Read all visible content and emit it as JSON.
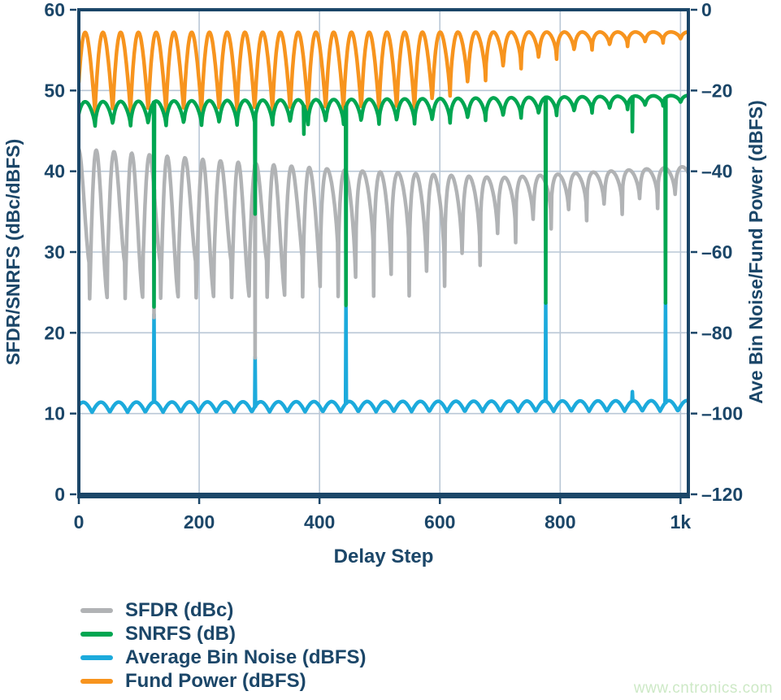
{
  "watermark": {
    "text": "www.cntronics.com",
    "color": "#cde9c6"
  },
  "chart_data": {
    "type": "line",
    "title": "",
    "xlabel": "Delay Step",
    "ylabel_left": "SFDR/SNRFS (dBc/dBFS)",
    "ylabel_right": "Ave Bin Noise/Fund Power (dBFS)",
    "grid": true,
    "legend_position": "bottom-left",
    "colors": {
      "axis": "#1b4668",
      "grid": "#b9c7d6",
      "background": "#ffffff"
    },
    "x_range": [
      0,
      1013
    ],
    "x_ticks": {
      "values": [
        0,
        200,
        400,
        600,
        800,
        1000
      ],
      "labels": [
        "0",
        "200",
        "400",
        "600",
        "800",
        "1k"
      ]
    },
    "y_left": {
      "min": 0,
      "max": 60,
      "ticks": [
        0,
        10,
        20,
        30,
        40,
        50,
        60
      ],
      "labels": [
        "0",
        "10",
        "20",
        "30",
        "40",
        "50",
        "60"
      ]
    },
    "y_right": {
      "min": -120,
      "max": 0,
      "ticks": [
        0,
        -20,
        -40,
        -60,
        -80,
        -100,
        -120
      ],
      "labels": [
        "0",
        "–20",
        "–40",
        "–60",
        "–80",
        "–100",
        "–120"
      ]
    },
    "waveform_note": "All series are quasi-periodic notch waveforms, period ~29.5 delay steps. value(x)=bottom+(top-bottom)*|sin(pi*u^skew)|^exp with u the phase fraction; envelopes are piecewise-linear breakpoints [x,value]; spikes are single-step glitches [x,value].",
    "series": [
      {
        "name": "SFDR (dBc)",
        "color": "#b1b3b5",
        "axis": "left",
        "z": 1,
        "period": 29.5,
        "phase": 18,
        "skew": 0.7,
        "top": [
          [
            0,
            42.8
          ],
          [
            250,
            41.2
          ],
          [
            450,
            40.1
          ],
          [
            700,
            39.2
          ],
          [
            1013,
            40.6
          ]
        ],
        "bottom": [
          [
            0,
            24.2
          ],
          [
            580,
            24.6
          ],
          [
            650,
            27.5
          ],
          [
            720,
            31.0
          ],
          [
            800,
            33.3
          ],
          [
            950,
            35.3
          ],
          [
            1013,
            35.8
          ]
        ],
        "exp": [
          [
            0,
            1.5
          ],
          [
            330,
            1.4
          ],
          [
            420,
            0.6
          ],
          [
            700,
            0.4
          ],
          [
            1013,
            0.35
          ]
        ],
        "alt": {
          "until": 560,
          "raise": 4.2
        },
        "spikes": [
          [
            125,
            21.9
          ],
          [
            293,
            16.9
          ]
        ]
      },
      {
        "name": "SNRFS (dB)",
        "color": "#00a651",
        "axis": "left",
        "z": 3,
        "period": 29.5,
        "phase": 27,
        "skew": 0.85,
        "top": [
          [
            0,
            48.6
          ],
          [
            600,
            49.0
          ],
          [
            1013,
            49.4
          ]
        ],
        "bottom": [
          [
            0,
            45.6
          ],
          [
            600,
            45.9
          ],
          [
            850,
            47.2
          ],
          [
            1013,
            48.4
          ]
        ],
        "exp": [
          [
            0,
            0.7
          ],
          [
            600,
            0.55
          ],
          [
            1013,
            0.45
          ]
        ],
        "spikes": [
          [
            125,
            23.2
          ],
          [
            293,
            34.7
          ],
          [
            374,
            44.6
          ],
          [
            444,
            23.4
          ],
          [
            776,
            23.7
          ],
          [
            920,
            44.9
          ],
          [
            975,
            23.7
          ]
        ]
      },
      {
        "name": "Average Bin Noise (dBFS)",
        "color": "#1caadc",
        "axis": "right",
        "z": 0,
        "period": 29.5,
        "phase": 22,
        "skew": 1.0,
        "top": [
          [
            0,
            -97.2
          ],
          [
            1013,
            -96.8
          ]
        ],
        "bottom": [
          [
            0,
            -99.7
          ],
          [
            1013,
            -99.4
          ]
        ],
        "exp": [
          [
            0,
            1.0
          ],
          [
            1013,
            1.0
          ]
        ],
        "spikes": [
          [
            125,
            -75.4
          ],
          [
            293,
            -86.0
          ],
          [
            444,
            -73.6
          ],
          [
            776,
            -72.6
          ],
          [
            920,
            -94.6
          ],
          [
            975,
            -72.6
          ]
        ]
      },
      {
        "name": "Fund Power (dBFS)",
        "color": "#f7941e",
        "axis": "right",
        "z": 2,
        "period": 29.5,
        "phase": 27,
        "skew": 0.85,
        "top": [
          [
            0,
            -5.6
          ],
          [
            1013,
            -5.5
          ]
        ],
        "bottom": [
          [
            0,
            -25.4
          ],
          [
            560,
            -25.0
          ],
          [
            700,
            -16.0
          ],
          [
            850,
            -10.0
          ],
          [
            1013,
            -7.6
          ]
        ],
        "exp": [
          [
            0,
            1.0
          ],
          [
            560,
            0.9
          ],
          [
            720,
            0.5
          ],
          [
            1013,
            0.42
          ]
        ],
        "spikes": []
      }
    ]
  }
}
